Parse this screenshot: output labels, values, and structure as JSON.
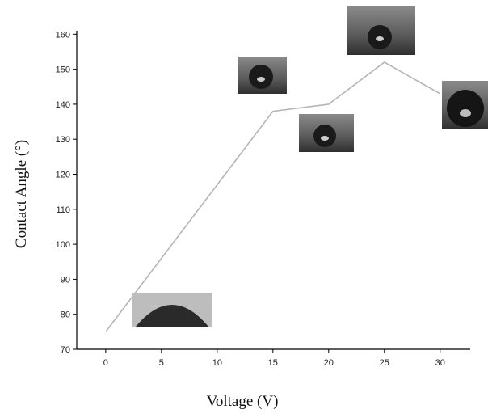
{
  "chart_data": {
    "type": "line",
    "x_label": "Voltage (V)",
    "y_label": "Contact Angle (°)",
    "series": [
      {
        "color": "#b5b5b5",
        "x": [
          0,
          15,
          20,
          25,
          30
        ],
        "values": [
          75,
          138,
          140,
          152,
          143
        ]
      }
    ],
    "xlim": [
      -2.6,
      32.7
    ],
    "ylim": [
      70,
      161
    ],
    "xticks": [
      0,
      5,
      10,
      15,
      20,
      25,
      30
    ],
    "yticks": [
      70,
      80,
      90,
      100,
      110,
      120,
      130,
      140,
      150,
      160
    ]
  }
}
